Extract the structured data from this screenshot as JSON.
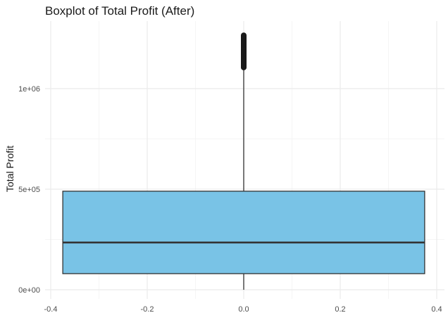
{
  "chart_data": {
    "type": "boxplot",
    "title": "Boxplot of Total Profit (After)",
    "xlabel": "",
    "ylabel": "Total Profit",
    "xlim": [
      -0.4,
      0.4
    ],
    "ylim": [
      0,
      1265000
    ],
    "x_ticks": [
      {
        "value": -0.4,
        "label": "-0.4"
      },
      {
        "value": -0.2,
        "label": "-0.2"
      },
      {
        "value": 0.0,
        "label": "0.0"
      },
      {
        "value": 0.2,
        "label": "0.2"
      },
      {
        "value": 0.4,
        "label": "0.4"
      }
    ],
    "y_ticks": [
      {
        "value": 0,
        "label": "0e+00"
      },
      {
        "value": 500000,
        "label": "5e+05"
      },
      {
        "value": 1000000,
        "label": "1e+06"
      }
    ],
    "grid": true,
    "box": {
      "x_center": 0.0,
      "x_left": -0.375,
      "x_right": 0.375,
      "whisker_low": 0,
      "q1": 80000,
      "median": 235000,
      "q3": 490000,
      "whisker_high": 1100000,
      "outliers_min": 1105000,
      "outliers_max": 1265000
    },
    "colors": {
      "box_fill": "#79C3E6",
      "box_stroke": "#333333",
      "grid_major": "#EBEBEB",
      "grid_minor": "#F5F5F5",
      "outlier": "#1a1a1a"
    }
  }
}
